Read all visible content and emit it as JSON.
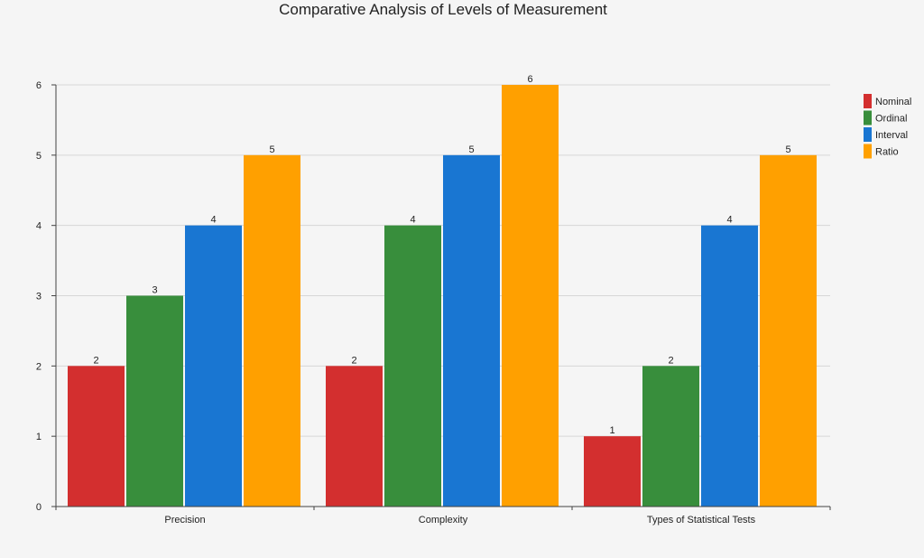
{
  "chart_data": {
    "type": "bar",
    "title": "Comparative Analysis of Levels of Measurement",
    "xlabel": "",
    "ylabel": "",
    "categories": [
      "Precision",
      "Complexity",
      "Types of Statistical Tests"
    ],
    "series": [
      {
        "name": "Nominal",
        "values": [
          2,
          2,
          1
        ],
        "color": "#d32f2f"
      },
      {
        "name": "Ordinal",
        "values": [
          3,
          4,
          2
        ],
        "color": "#388e3c"
      },
      {
        "name": "Interval",
        "values": [
          4,
          5,
          4
        ],
        "color": "#1976d2"
      },
      {
        "name": "Ratio",
        "values": [
          5,
          6,
          5
        ],
        "color": "#ffa000"
      }
    ],
    "ylim": [
      0,
      6
    ],
    "yticks": [
      0,
      1,
      2,
      3,
      4,
      5,
      6
    ],
    "grid": true,
    "legend_position": "top-right",
    "data_labels": true
  }
}
